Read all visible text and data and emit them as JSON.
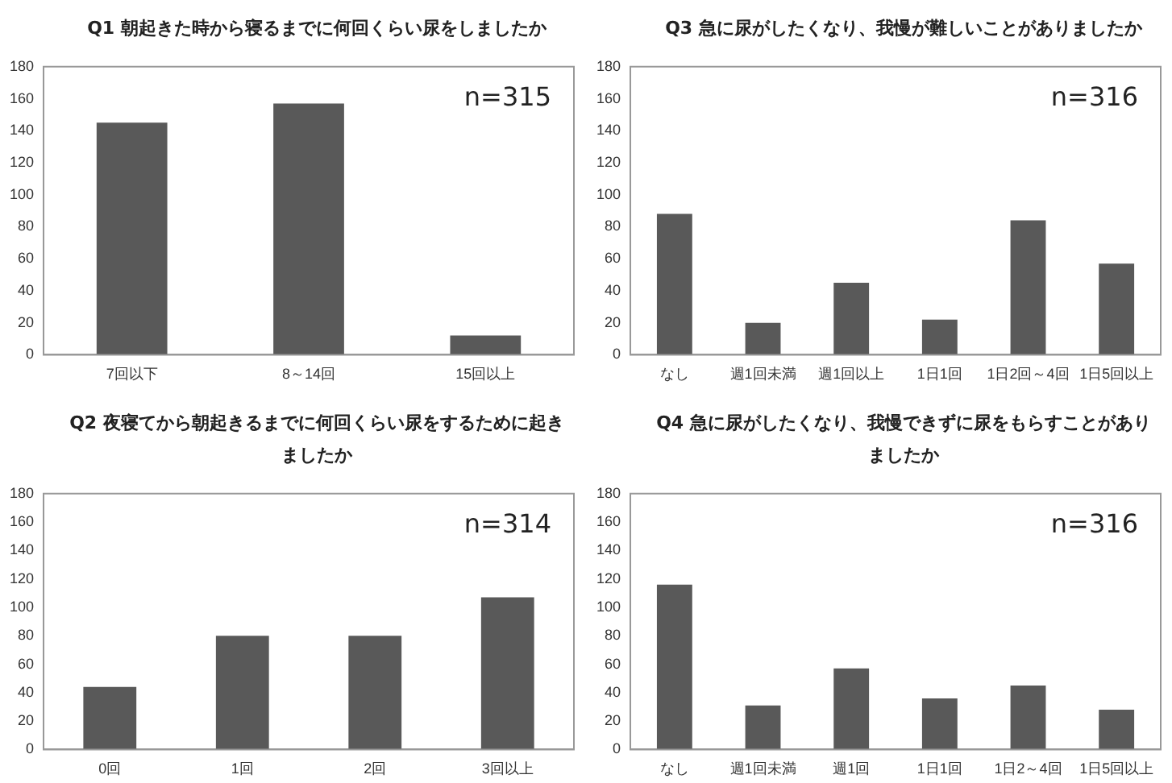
{
  "chart_data": [
    {
      "type": "bar",
      "title": "Q1  朝起きた時から寝るまでに何回くらい尿をしましたか",
      "categories": [
        "7回以下",
        "8～14回",
        "15回以上"
      ],
      "values": [
        145,
        157,
        12
      ],
      "color": "#595959",
      "ylim": [
        0,
        180
      ],
      "yticks": [
        0,
        20,
        40,
        60,
        80,
        100,
        120,
        140,
        160,
        180
      ],
      "grid": false,
      "legend": false,
      "annotations": [
        "n=315"
      ]
    },
    {
      "type": "bar",
      "title": "Q3 急に尿がしたくなり、我慢が難しいことがありましたか",
      "categories": [
        "なし",
        "週1回未満",
        "週1回以上",
        "1日1回",
        "1日2回～4回",
        "1日5回以上"
      ],
      "values": [
        88,
        20,
        45,
        22,
        84,
        57
      ],
      "color": "#595959",
      "ylim": [
        0,
        180
      ],
      "yticks": [
        0,
        20,
        40,
        60,
        80,
        100,
        120,
        140,
        160,
        180
      ],
      "grid": false,
      "legend": false,
      "annotations": [
        "n=316"
      ]
    },
    {
      "type": "bar",
      "title": "Q2 夜寝てから朝起きるまでに何回くらい尿をするために起きましたか",
      "categories": [
        "0回",
        "1回",
        "2回",
        "3回以上"
      ],
      "values": [
        44,
        80,
        80,
        107
      ],
      "color": "#595959",
      "ylim": [
        0,
        180
      ],
      "yticks": [
        0,
        20,
        40,
        60,
        80,
        100,
        120,
        140,
        160,
        180
      ],
      "grid": false,
      "legend": false,
      "annotations": [
        "n=314"
      ]
    },
    {
      "type": "bar",
      "title": "Q4 急に尿がしたくなり、我慢できずに尿をもらすことがありましたか",
      "categories": [
        "なし",
        "週1回未満",
        "週1回",
        "1日1回",
        "1日2～4回",
        "1日5回以上"
      ],
      "values": [
        116,
        31,
        57,
        36,
        45,
        28
      ],
      "color": "#595959",
      "ylim": [
        0,
        180
      ],
      "yticks": [
        0,
        20,
        40,
        60,
        80,
        100,
        120,
        140,
        160,
        180
      ],
      "grid": false,
      "legend": false,
      "annotations": [
        "n=316"
      ]
    }
  ]
}
